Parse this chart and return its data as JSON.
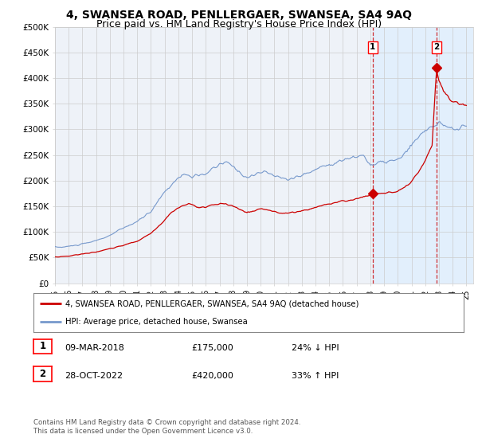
{
  "title": "4, SWANSEA ROAD, PENLLERGAER, SWANSEA, SA4 9AQ",
  "subtitle": "Price paid vs. HM Land Registry's House Price Index (HPI)",
  "ylim": [
    0,
    500000
  ],
  "yticks": [
    0,
    50000,
    100000,
    150000,
    200000,
    250000,
    300000,
    350000,
    400000,
    450000,
    500000
  ],
  "ytick_labels": [
    "£0",
    "£50K",
    "£100K",
    "£150K",
    "£200K",
    "£250K",
    "£300K",
    "£350K",
    "£400K",
    "£450K",
    "£500K"
  ],
  "xlim_start": 1995.0,
  "xlim_end": 2025.5,
  "xtick_years": [
    1995,
    1996,
    1997,
    1998,
    1999,
    2000,
    2001,
    2002,
    2003,
    2004,
    2005,
    2006,
    2007,
    2008,
    2009,
    2010,
    2011,
    2012,
    2013,
    2014,
    2015,
    2016,
    2017,
    2018,
    2019,
    2020,
    2021,
    2022,
    2023,
    2024,
    2025
  ],
  "hpi_color": "#7799cc",
  "property_color": "#cc0000",
  "shade_color": "#ddeeff",
  "shade_start": 2018.17,
  "shade_end": 2025.5,
  "vline1_x": 2018.17,
  "vline2_x": 2022.82,
  "sale1_x": 2018.17,
  "sale1_y": 175000,
  "sale1_label": "1",
  "sale2_x": 2022.82,
  "sale2_y": 420000,
  "sale2_label": "2",
  "legend_property": "4, SWANSEA ROAD, PENLLERGAER, SWANSEA, SA4 9AQ (detached house)",
  "legend_hpi": "HPI: Average price, detached house, Swansea",
  "table_row1": [
    "1",
    "09-MAR-2018",
    "£175,000",
    "24% ↓ HPI"
  ],
  "table_row2": [
    "2",
    "28-OCT-2022",
    "£420,000",
    "33% ↑ HPI"
  ],
  "footer": "Contains HM Land Registry data © Crown copyright and database right 2024.\nThis data is licensed under the Open Government Licence v3.0.",
  "bg_color": "#ffffff",
  "plot_bg_color": "#eef2f8",
  "title_fontsize": 10,
  "subtitle_fontsize": 9
}
